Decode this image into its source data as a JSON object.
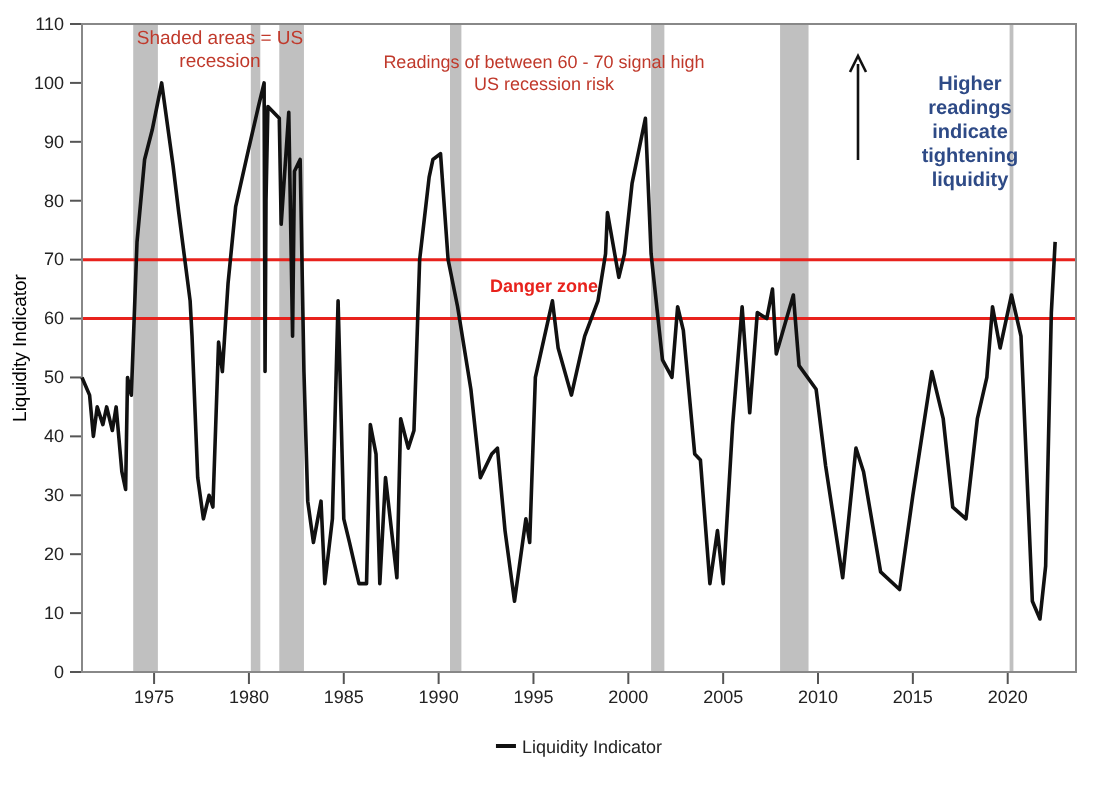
{
  "chart_data": {
    "type": "line",
    "ylabel": "Liquidity Indicator",
    "xlim": [
      1971.2,
      2023.6
    ],
    "xticks": [
      1975,
      1980,
      1985,
      1990,
      1995,
      2000,
      2005,
      2010,
      2015,
      2020
    ],
    "ylim": [
      0,
      110
    ],
    "yticks": [
      0,
      10,
      20,
      30,
      40,
      50,
      60,
      70,
      80,
      90,
      100,
      110
    ],
    "grid": false,
    "legend": "bottom",
    "marker": "none",
    "line_style": "solid",
    "annotations": [
      "Shaded areas = US recession",
      "Readings of between 60 - 70 signal high US recession risk",
      "Higher readings indicate tightening liquidity",
      "Danger zone"
    ],
    "ref_lines": [
      {
        "axis": "y",
        "value": 70,
        "color": "#e8221c"
      },
      {
        "axis": "y",
        "value": 60,
        "color": "#e8221c"
      }
    ],
    "bands": [
      {
        "axis": "x",
        "from": 1973.9,
        "to": 1975.2,
        "color": "#c0c0c0"
      },
      {
        "axis": "x",
        "from": 1980.1,
        "to": 1980.6,
        "color": "#c0c0c0"
      },
      {
        "axis": "x",
        "from": 1981.6,
        "to": 1982.9,
        "color": "#c0c0c0"
      },
      {
        "axis": "x",
        "from": 1990.6,
        "to": 1991.2,
        "color": "#c0c0c0"
      },
      {
        "axis": "x",
        "from": 2001.2,
        "to": 2001.9,
        "color": "#c0c0c0"
      },
      {
        "axis": "x",
        "from": 2008.0,
        "to": 2009.5,
        "color": "#c0c0c0"
      },
      {
        "axis": "x",
        "from": 2020.1,
        "to": 2020.3,
        "color": "#c0c0c0"
      }
    ],
    "series": [
      {
        "name": "Liquidity Indicator",
        "color": "#111111",
        "x": [
          1971.2,
          1971.6,
          1971.8,
          1972.0,
          1972.3,
          1972.5,
          1972.8,
          1973.0,
          1973.3,
          1973.5,
          1973.6,
          1973.8,
          1974.1,
          1974.5,
          1974.9,
          1975.4,
          1976.0,
          1976.3,
          1976.9,
          1977.0,
          1977.3,
          1977.6,
          1977.9,
          1978.1,
          1978.4,
          1978.6,
          1978.9,
          1979.3,
          1980.0,
          1980.5,
          1980.8,
          1980.85,
          1980.9,
          1981.0,
          1981.6,
          1981.7,
          1982.1,
          1982.3,
          1982.4,
          1982.7,
          1982.9,
          1983.1,
          1983.4,
          1983.8,
          1984.0,
          1984.4,
          1984.7,
          1985.0,
          1985.3,
          1985.8,
          1986.2,
          1986.4,
          1986.7,
          1986.9,
          1987.2,
          1987.8,
          1988.0,
          1988.4,
          1988.7,
          1989.0,
          1989.5,
          1989.7,
          1990.1,
          1990.5,
          1991.0,
          1991.7,
          1992.2,
          1992.8,
          1993.1,
          1993.5,
          1994.0,
          1994.6,
          1994.8,
          1995.1,
          1996.0,
          1996.3,
          1997.0,
          1997.7,
          1998.4,
          1998.8,
          1998.9,
          1999.5,
          1999.8,
          2000.2,
          2000.9,
          2001.2,
          2001.8,
          2002.3,
          2002.6,
          2002.9,
          2003.5,
          2003.8,
          2004.3,
          2004.7,
          2005.0,
          2005.5,
          2006.0,
          2006.4,
          2006.8,
          2007.3,
          2007.6,
          2007.8,
          2008.7,
          2009.0,
          2009.9,
          2010.4,
          2011.3,
          2012.0,
          2012.4,
          2013.3,
          2014.3,
          2015.0,
          2016.0,
          2016.6,
          2017.1,
          2017.8,
          2018.4,
          2018.9,
          2019.2,
          2019.6,
          2020.2,
          2020.7,
          2021.3,
          2021.7,
          2022.0,
          2022.3,
          2022.5
        ],
        "values": [
          50,
          47,
          40,
          45,
          42,
          45,
          41,
          45,
          34,
          31,
          50,
          47,
          73,
          87,
          92,
          100,
          86,
          78,
          63,
          57,
          33,
          26,
          30,
          28,
          56,
          51,
          66,
          79,
          89,
          96,
          100,
          51,
          80,
          96,
          94,
          76,
          95,
          57,
          85,
          87,
          51,
          29,
          22,
          29,
          15,
          26,
          63,
          26,
          22,
          15,
          15,
          42,
          37,
          15,
          33,
          16,
          43,
          38,
          41,
          70,
          84,
          87,
          88,
          70,
          62,
          48,
          33,
          37,
          38,
          24,
          12,
          26,
          22,
          50,
          63,
          55,
          47,
          57,
          63,
          71,
          78,
          67,
          71,
          83,
          94,
          71,
          53,
          50,
          62,
          58,
          37,
          36,
          15,
          24,
          15,
          42,
          62,
          44,
          61,
          60,
          65,
          54,
          64,
          52,
          48,
          35,
          16,
          38,
          34,
          17,
          14,
          30,
          51,
          43,
          28,
          26,
          43,
          50,
          62,
          55,
          64,
          57,
          12,
          9,
          18,
          61,
          73
        ]
      }
    ]
  }
}
